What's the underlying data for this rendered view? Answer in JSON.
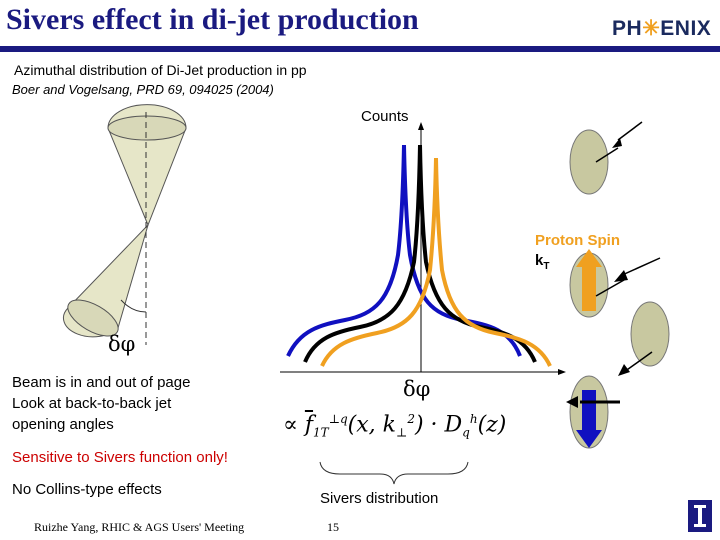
{
  "header": {
    "title": "Sivers effect in di-jet production",
    "logo_text": "PH✳ENIX"
  },
  "subtitle": "Azimuthal distribution of Di-Jet production in pp",
  "citation": "Boer and Vogelsang, PRD 69, 094025 (2004)",
  "plot": {
    "y_label": "Counts",
    "x_label": "δφ",
    "series_colors": [
      "#1010c0",
      "#000000",
      "#f0a020"
    ]
  },
  "cone_label": "δφ",
  "spin": {
    "proton_spin_label": "Proton Spin",
    "kt_label": "k",
    "kt_sub": "T"
  },
  "text": {
    "beam_line1": "Beam is in and out of page",
    "beam_line2": "Look at back-to-back jet",
    "beam_line3": "opening angles",
    "sensitive": "Sensitive to Sivers function only!",
    "no_collins": "No Collins-type effects",
    "sivers_distribution": "Sivers distribution"
  },
  "formula": "∝ f⊥1T q(x, k⊥²) · D q h(z)",
  "footer": {
    "meeting": "Ruizhe Yang, RHIC & AGS Users' Meeting",
    "page": "15"
  },
  "colors": {
    "title": "#1a1a80",
    "orange": "#f0a020",
    "blue": "#1010c0",
    "red": "#cc0000",
    "cone_fill": "#e6e6c8",
    "ellipse_fill": "#c8c8a0"
  }
}
